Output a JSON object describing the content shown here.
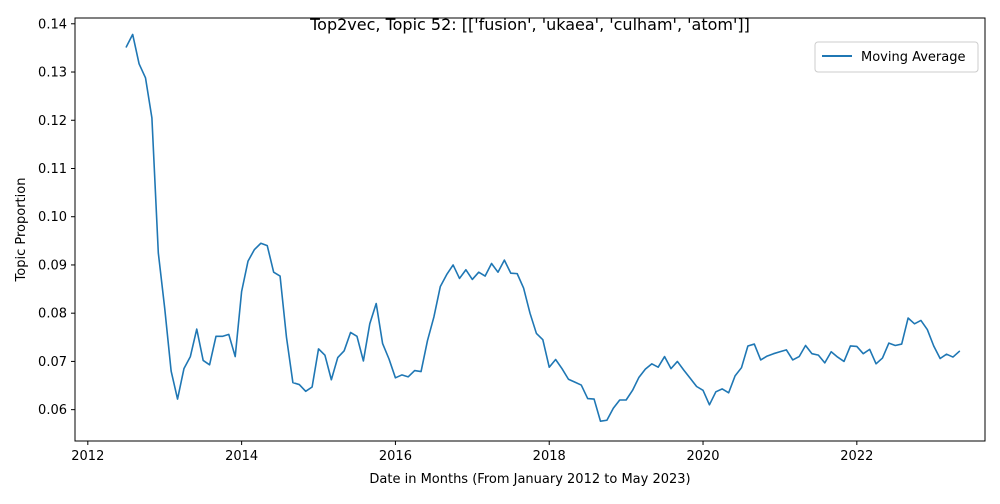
{
  "chart_data": {
    "type": "line",
    "title": "Top2vec, Topic 52: [['fusion', 'ukaea', 'culham', 'atom']]",
    "xlabel": "Date in Months (From January 2012 to May 2023)",
    "ylabel": "Topic Proportion",
    "xlim": [
      "2011-11-01",
      "2023-09-01"
    ],
    "ylim": [
      0.0535,
      0.1412
    ],
    "x_ticks": [
      {
        "value": "2012-01-01",
        "label": "2012"
      },
      {
        "value": "2014-01-01",
        "label": "2014"
      },
      {
        "value": "2016-01-01",
        "label": "2016"
      },
      {
        "value": "2018-01-01",
        "label": "2018"
      },
      {
        "value": "2020-01-01",
        "label": "2020"
      },
      {
        "value": "2022-01-01",
        "label": "2022"
      }
    ],
    "y_ticks": [
      {
        "value": 0.06,
        "label": "0.06"
      },
      {
        "value": 0.07,
        "label": "0.07"
      },
      {
        "value": 0.08,
        "label": "0.08"
      },
      {
        "value": 0.09,
        "label": "0.09"
      },
      {
        "value": 0.1,
        "label": "0.10"
      },
      {
        "value": 0.11,
        "label": "0.11"
      },
      {
        "value": 0.12,
        "label": "0.12"
      },
      {
        "value": 0.13,
        "label": "0.13"
      },
      {
        "value": 0.14,
        "label": "0.14"
      }
    ],
    "grid": false,
    "legend": {
      "position": "top-right",
      "entries": [
        "Moving Average"
      ]
    },
    "colors": {
      "series": "#1f77b4",
      "axes": "#000000",
      "legend_border": "#cccccc"
    },
    "series": [
      {
        "name": "Moving Average",
        "x": [
          "2012-07",
          "2012-08",
          "2012-09",
          "2012-10",
          "2012-11",
          "2012-12",
          "2013-01",
          "2013-02",
          "2013-03",
          "2013-04",
          "2013-05",
          "2013-06",
          "2013-07",
          "2013-08",
          "2013-09",
          "2013-10",
          "2013-11",
          "2013-12",
          "2014-01",
          "2014-02",
          "2014-03",
          "2014-04",
          "2014-05",
          "2014-06",
          "2014-07",
          "2014-08",
          "2014-09",
          "2014-10",
          "2014-11",
          "2014-12",
          "2015-01",
          "2015-02",
          "2015-03",
          "2015-04",
          "2015-05",
          "2015-06",
          "2015-07",
          "2015-08",
          "2015-09",
          "2015-10",
          "2015-11",
          "2015-12",
          "2016-01",
          "2016-02",
          "2016-03",
          "2016-04",
          "2016-05",
          "2016-06",
          "2016-07",
          "2016-08",
          "2016-09",
          "2016-10",
          "2016-11",
          "2016-12",
          "2017-01",
          "2017-02",
          "2017-03",
          "2017-04",
          "2017-05",
          "2017-06",
          "2017-07",
          "2017-08",
          "2017-09",
          "2017-10",
          "2017-11",
          "2017-12",
          "2018-01",
          "2018-02",
          "2018-03",
          "2018-04",
          "2018-05",
          "2018-06",
          "2018-07",
          "2018-08",
          "2018-09",
          "2018-10",
          "2018-11",
          "2018-12",
          "2019-01",
          "2019-02",
          "2019-03",
          "2019-04",
          "2019-05",
          "2019-06",
          "2019-07",
          "2019-08",
          "2019-09",
          "2019-10",
          "2019-11",
          "2019-12",
          "2020-01",
          "2020-02",
          "2020-03",
          "2020-04",
          "2020-05",
          "2020-06",
          "2020-07",
          "2020-08",
          "2020-09",
          "2020-10",
          "2020-11",
          "2020-12",
          "2021-01",
          "2021-02",
          "2021-03",
          "2021-04",
          "2021-05",
          "2021-06",
          "2021-07",
          "2021-08",
          "2021-09",
          "2021-10",
          "2021-11",
          "2021-12",
          "2022-01",
          "2022-02",
          "2022-03",
          "2022-04",
          "2022-05",
          "2022-06",
          "2022-07",
          "2022-08",
          "2022-09",
          "2022-10",
          "2022-11",
          "2022-12",
          "2023-01",
          "2023-02",
          "2023-03",
          "2023-04",
          "2023-05"
        ],
        "values": [
          0.1352,
          0.1378,
          0.1317,
          0.1288,
          0.1205,
          0.0925,
          0.081,
          0.068,
          0.0622,
          0.0685,
          0.071,
          0.0767,
          0.0702,
          0.0693,
          0.0752,
          0.0752,
          0.0756,
          0.071,
          0.0845,
          0.0908,
          0.0932,
          0.0945,
          0.094,
          0.0885,
          0.0877,
          0.075,
          0.0656,
          0.0652,
          0.0638,
          0.0647,
          0.0726,
          0.0713,
          0.0662,
          0.0708,
          0.0722,
          0.076,
          0.0752,
          0.0701,
          0.0778,
          0.082,
          0.0737,
          0.0705,
          0.0666,
          0.0672,
          0.0668,
          0.0681,
          0.0679,
          0.0743,
          0.0792,
          0.0855,
          0.088,
          0.09,
          0.0872,
          0.089,
          0.087,
          0.0885,
          0.0877,
          0.0903,
          0.0885,
          0.091,
          0.0883,
          0.0882,
          0.0852,
          0.08,
          0.0758,
          0.0745,
          0.0688,
          0.0704,
          0.0685,
          0.0663,
          0.0657,
          0.0651,
          0.0623,
          0.0622,
          0.0576,
          0.0578,
          0.0603,
          0.062,
          0.062,
          0.064,
          0.0667,
          0.0684,
          0.0695,
          0.0688,
          0.071,
          0.0685,
          0.07,
          0.0682,
          0.0665,
          0.0648,
          0.064,
          0.061,
          0.0637,
          0.0643,
          0.0635,
          0.067,
          0.0687,
          0.0732,
          0.0736,
          0.0703,
          0.0711,
          0.0716,
          0.072,
          0.0724,
          0.0703,
          0.071,
          0.0733,
          0.0716,
          0.0713,
          0.0697,
          0.072,
          0.0709,
          0.07,
          0.0732,
          0.0731,
          0.0716,
          0.0725,
          0.0695,
          0.0707,
          0.0738,
          0.0733,
          0.0736,
          0.079,
          0.0778,
          0.0785,
          0.0766,
          0.0732,
          0.0706,
          0.0715,
          0.0709,
          0.0721
        ]
      }
    ]
  }
}
